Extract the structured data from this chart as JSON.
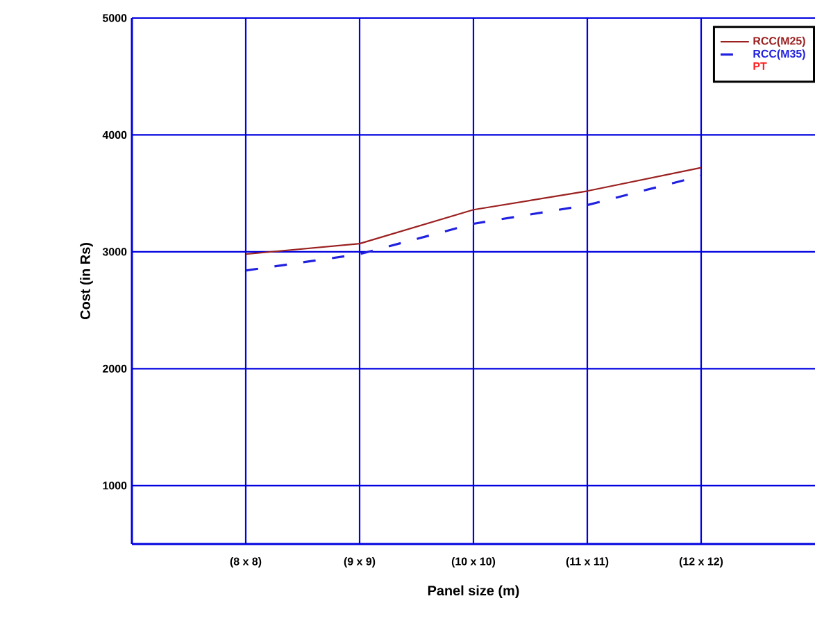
{
  "chart_data": {
    "type": "line",
    "xlabel": "Panel size (m)",
    "ylabel": "Cost (in Rs)",
    "categories": [
      "(8 x 8)",
      "(9 x 9)",
      "(10 x 10)",
      "(11 x 11)",
      "(12 x 12)"
    ],
    "series": [
      {
        "name": "RCC(M25)",
        "color": "#9b2020",
        "line_style": "solid",
        "values": [
          2980,
          3070,
          3360,
          3520,
          3720
        ]
      },
      {
        "name": "RCC(M35)",
        "color": "#2020e0",
        "line_style": "dashed",
        "values": [
          2840,
          2980,
          3240,
          3400,
          3650
        ]
      },
      {
        "name": "PT",
        "color": "#ff2020",
        "values": [
          null,
          null,
          null,
          null,
          null
        ]
      }
    ],
    "ylim": [
      500,
      5000
    ],
    "yticks": [
      1000,
      2000,
      3000,
      4000,
      5000
    ],
    "grid": true,
    "legend": "top right",
    "marker": "none"
  }
}
